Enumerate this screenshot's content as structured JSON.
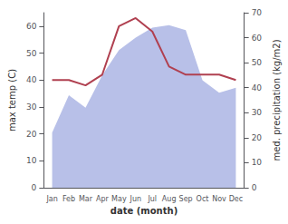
{
  "chart_data": {
    "type": "line",
    "xlabel": "date (month)",
    "ylabel": "max temp (C)",
    "y2label": "med. precipitation (kg/m2)",
    "categories": [
      "Jan",
      "Feb",
      "Mar",
      "Apr",
      "May",
      "Jun",
      "Jul",
      "Aug",
      "Sep",
      "Oct",
      "Nov",
      "Dec"
    ],
    "series": [
      {
        "type": "area",
        "axis": "y2",
        "color": "#b8c0e8",
        "values": [
          22,
          37,
          32,
          45,
          55,
          60,
          64,
          65,
          63,
          43,
          38,
          40
        ]
      },
      {
        "type": "line",
        "color": "#b04050",
        "values": [
          40,
          40,
          38,
          42,
          60,
          63,
          58,
          45,
          42,
          42,
          42,
          40
        ]
      }
    ],
    "ylim": [
      0,
      65
    ],
    "yticks": [
      0,
      10,
      20,
      30,
      40,
      50,
      60
    ],
    "y2lim": [
      0,
      70
    ],
    "y2ticks": [
      0,
      10,
      20,
      30,
      40,
      50,
      60,
      70
    ],
    "grid": false
  }
}
